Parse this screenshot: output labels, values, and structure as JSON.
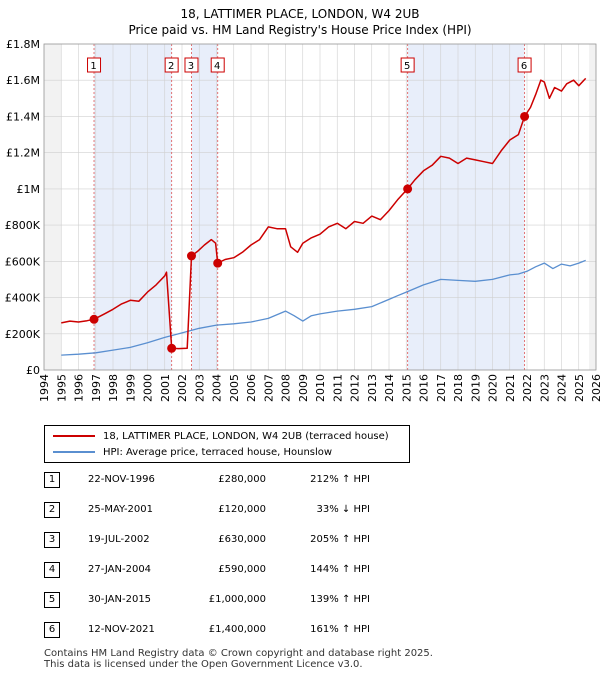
{
  "chart_data": {
    "type": "line",
    "title": "18, LATTIMER PLACE, LONDON, W4 2UB",
    "subtitle": "Price paid vs. HM Land Registry's House Price Index (HPI)",
    "xlim": [
      1994,
      2026
    ],
    "ylim": [
      0,
      1800000
    ],
    "x_ticks": [
      1994,
      1995,
      1996,
      1997,
      1998,
      1999,
      2000,
      2001,
      2002,
      2003,
      2004,
      2005,
      2006,
      2007,
      2008,
      2009,
      2010,
      2011,
      2012,
      2013,
      2014,
      2015,
      2016,
      2017,
      2018,
      2019,
      2020,
      2021,
      2022,
      2023,
      2024,
      2025,
      2026
    ],
    "y_ticks": [
      0,
      200000,
      400000,
      600000,
      800000,
      1000000,
      1200000,
      1400000,
      1600000,
      1800000
    ],
    "y_tick_labels": [
      "£0",
      "£200K",
      "£400K",
      "£600K",
      "£800K",
      "£1M",
      "£1.2M",
      "£1.4M",
      "£1.6M",
      "£1.8M"
    ],
    "grid": true,
    "data_range": [
      1995.0,
      2025.6
    ],
    "shaded_bands": [
      [
        1996.9,
        2001.4
      ],
      [
        2002.55,
        2004.07
      ],
      [
        2015.08,
        2021.86
      ]
    ],
    "series": [
      {
        "name": "18, LATTIMER PLACE, LONDON, W4 2UB (terraced house)",
        "color": "#cc0000",
        "x": [
          1995.0,
          1995.5,
          1996.0,
          1996.5,
          1996.9,
          1997.5,
          1998.0,
          1998.5,
          1999.0,
          1999.5,
          2000.0,
          2000.5,
          2001.0,
          2001.1,
          2001.4,
          2001.8,
          2002.3,
          2002.55,
          2002.9,
          2003.3,
          2003.7,
          2003.95,
          2004.07,
          2004.5,
          2005.0,
          2005.5,
          2006.0,
          2006.5,
          2007.0,
          2007.5,
          2008.0,
          2008.3,
          2008.7,
          2009.0,
          2009.5,
          2010.0,
          2010.5,
          2011.0,
          2011.5,
          2012.0,
          2012.5,
          2013.0,
          2013.5,
          2014.0,
          2014.5,
          2015.08,
          2015.5,
          2016.0,
          2016.5,
          2017.0,
          2017.5,
          2018.0,
          2018.5,
          2019.0,
          2019.5,
          2020.0,
          2020.5,
          2021.0,
          2021.5,
          2021.86,
          2022.2,
          2022.5,
          2022.8,
          2023.0,
          2023.3,
          2023.6,
          2024.0,
          2024.3,
          2024.7,
          2025.0,
          2025.4
        ],
        "values": [
          260000,
          270000,
          265000,
          272000,
          280000,
          310000,
          335000,
          365000,
          385000,
          380000,
          430000,
          470000,
          520000,
          540000,
          120000,
          118000,
          120000,
          630000,
          655000,
          690000,
          720000,
          700000,
          590000,
          610000,
          620000,
          650000,
          690000,
          720000,
          790000,
          780000,
          780000,
          680000,
          650000,
          700000,
          730000,
          750000,
          790000,
          810000,
          780000,
          820000,
          810000,
          850000,
          830000,
          880000,
          940000,
          1000000,
          1050000,
          1100000,
          1130000,
          1180000,
          1170000,
          1140000,
          1170000,
          1160000,
          1150000,
          1140000,
          1210000,
          1270000,
          1300000,
          1400000,
          1450000,
          1520000,
          1600000,
          1590000,
          1500000,
          1560000,
          1540000,
          1580000,
          1600000,
          1570000,
          1610000
        ]
      },
      {
        "name": "HPI: Average price, terraced house, Hounslow",
        "color": "#5a8fd0",
        "x": [
          1995.0,
          1996.0,
          1997.0,
          1998.0,
          1999.0,
          2000.0,
          2001.0,
          2002.0,
          2003.0,
          2004.0,
          2005.0,
          2006.0,
          2007.0,
          2008.0,
          2008.5,
          2009.0,
          2009.5,
          2010.0,
          2011.0,
          2012.0,
          2013.0,
          2014.0,
          2014.5,
          2015.0,
          2016.0,
          2017.0,
          2018.0,
          2019.0,
          2020.0,
          2021.0,
          2021.5,
          2022.0,
          2022.5,
          2023.0,
          2023.5,
          2024.0,
          2024.5,
          2025.0,
          2025.4
        ],
        "values": [
          82000,
          87000,
          95000,
          110000,
          125000,
          150000,
          180000,
          205000,
          230000,
          248000,
          255000,
          265000,
          285000,
          325000,
          300000,
          270000,
          300000,
          310000,
          325000,
          335000,
          350000,
          390000,
          410000,
          430000,
          470000,
          500000,
          495000,
          490000,
          500000,
          525000,
          530000,
          545000,
          570000,
          590000,
          560000,
          585000,
          575000,
          590000,
          605000
        ]
      }
    ],
    "markers": [
      {
        "label": "1",
        "x": 1996.9,
        "y": 280000
      },
      {
        "label": "2",
        "x": 2001.4,
        "y": 120000
      },
      {
        "label": "3",
        "x": 2002.55,
        "y": 630000
      },
      {
        "label": "4",
        "x": 2004.07,
        "y": 590000
      },
      {
        "label": "5",
        "x": 2015.08,
        "y": 1000000
      },
      {
        "label": "6",
        "x": 2021.86,
        "y": 1400000
      }
    ]
  },
  "title": "18, LATTIMER PLACE, LONDON, W4 2UB",
  "subtitle": "Price paid vs. HM Land Registry's House Price Index (HPI)",
  "legend": {
    "property": "18, LATTIMER PLACE, LONDON, W4 2UB (terraced house)",
    "hpi": "HPI: Average price, terraced house, Hounslow"
  },
  "sales": [
    {
      "num": "1",
      "date": "22-NOV-1996",
      "price": "£280,000",
      "hpi": "212% ↑ HPI"
    },
    {
      "num": "2",
      "date": "25-MAY-2001",
      "price": "£120,000",
      "hpi": "33% ↓ HPI"
    },
    {
      "num": "3",
      "date": "19-JUL-2002",
      "price": "£630,000",
      "hpi": "205% ↑ HPI"
    },
    {
      "num": "4",
      "date": "27-JAN-2004",
      "price": "£590,000",
      "hpi": "144% ↑ HPI"
    },
    {
      "num": "5",
      "date": "30-JAN-2015",
      "price": "£1,000,000",
      "hpi": "139% ↑ HPI"
    },
    {
      "num": "6",
      "date": "12-NOV-2021",
      "price": "£1,400,000",
      "hpi": "161% ↑ HPI"
    }
  ],
  "footer": {
    "line1": "Contains HM Land Registry data © Crown copyright and database right 2025.",
    "line2": "This data is licensed under the Open Government Licence v3.0."
  },
  "colors": {
    "property": "#cc0000",
    "hpi": "#5a8fd0",
    "band": "#e8eefa",
    "grid": "#d0d0d0"
  }
}
